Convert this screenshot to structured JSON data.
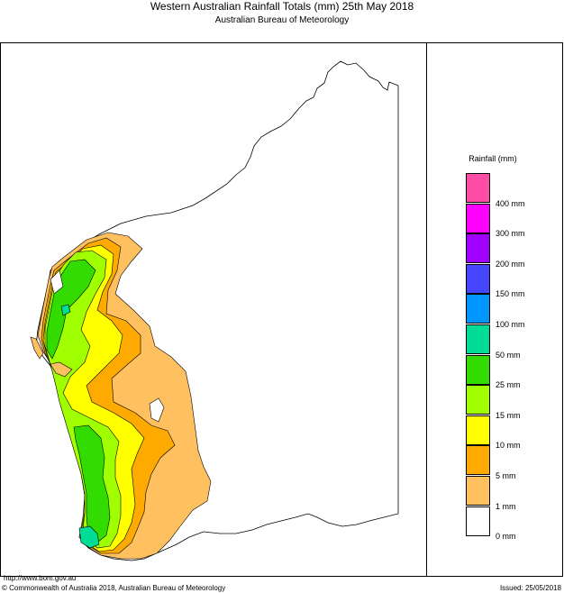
{
  "header": {
    "title": "Western Australian Rainfall Totals (mm) 25th May 2018",
    "subtitle": "Australian Bureau of Meteorology"
  },
  "legend": {
    "title": "Rainfall (mm)",
    "bands": [
      {
        "color": "#ff4da6"
      },
      {
        "color": "#ff00ff",
        "label": "400 mm"
      },
      {
        "color": "#a000ff",
        "label": "300 mm"
      },
      {
        "color": "#4646ff",
        "label": "200 mm"
      },
      {
        "color": "#0096ff",
        "label": "150 mm"
      },
      {
        "color": "#00dc96",
        "label": "100 mm"
      },
      {
        "color": "#32dc00",
        "label": "50 mm"
      },
      {
        "color": "#a0ff00",
        "label": "25 mm"
      },
      {
        "color": "#ffff00",
        "label": "15 mm"
      },
      {
        "color": "#ffaa00",
        "label": "10 mm"
      },
      {
        "color": "#ffc060",
        "label": "5 mm"
      },
      {
        "color": "#ffffff",
        "label": "1 mm"
      }
    ],
    "bottom_label": "0 mm"
  },
  "footer": {
    "url": "http://www.bom.gov.au",
    "copyright": "© Commonwealth of Australia 2018, Australian Bureau of Meteorology",
    "issued": "Issued: 25/05/2018"
  },
  "map_colors": {
    "rain_1_5": "#ffc060",
    "rain_5_10": "#ffaa00",
    "rain_10_15": "#ffff00",
    "rain_15_25": "#a0ff00",
    "rain_25_50": "#32dc00",
    "rain_50_100": "#00dc96",
    "dry": "#ffffff"
  }
}
